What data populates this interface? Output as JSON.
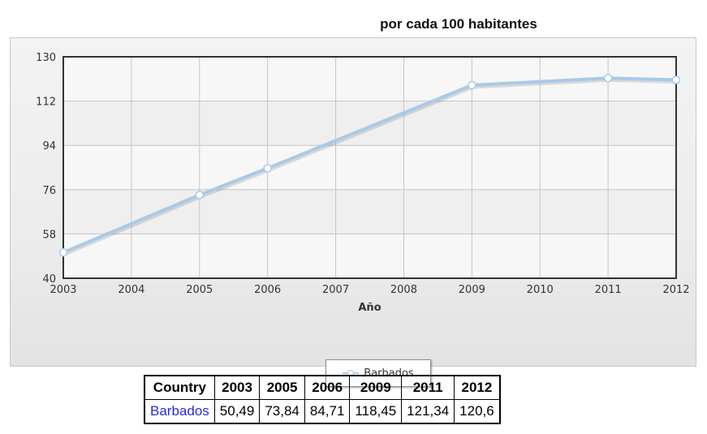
{
  "chart_data": {
    "type": "line",
    "title": "por cada 100 habitantes",
    "xlabel": "Año",
    "ylabel": "",
    "x": [
      2003,
      2005,
      2006,
      2009,
      2011,
      2012
    ],
    "x_ticks": [
      "2003",
      "2004",
      "2005",
      "2006",
      "2007",
      "2008",
      "2009",
      "2010",
      "2011",
      "2012"
    ],
    "xlim": [
      2003,
      2012
    ],
    "y_ticks": [
      "40",
      "58",
      "76",
      "94",
      "112",
      "130"
    ],
    "ylim": [
      40,
      130
    ],
    "grid": true,
    "legend_position": "bottom",
    "series": [
      {
        "name": "Barbados",
        "values": [
          50.49,
          73.84,
          84.71,
          118.45,
          121.34,
          120.6
        ],
        "color": "#a9c9e8"
      }
    ]
  },
  "table": {
    "headers": [
      "Country",
      "2003",
      "2005",
      "2006",
      "2009",
      "2011",
      "2012"
    ],
    "rows": [
      [
        "Barbados",
        "50,49",
        "73,84",
        "84,71",
        "118,45",
        "121,34",
        "120,6"
      ]
    ]
  }
}
